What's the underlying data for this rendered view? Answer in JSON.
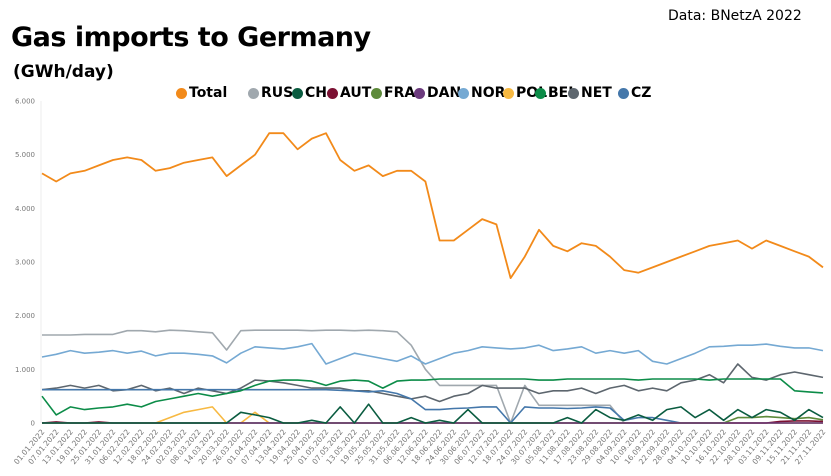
{
  "title": "Gas imports to Germany",
  "subtitle": "(GWh/day)",
  "source": "Data: BNetzA 2022",
  "chart_data": {
    "type": "line",
    "title": "Gas imports to Germany",
    "ylabel": "(GWh/day)",
    "ylim": [
      0,
      6000
    ],
    "yticks": [
      "0",
      "1.000",
      "2.000",
      "3.000",
      "4.000",
      "5.000",
      "6.000"
    ],
    "grid": false,
    "legend_placement": "top",
    "x": [
      "01.01.2022",
      "07.01.2022",
      "13.01.2022",
      "19.01.2022",
      "25.01.2022",
      "31.01.2022",
      "06.02.2022",
      "12.02.2022",
      "18.02.2022",
      "24.02.2022",
      "02.03.2022",
      "08.03.2022",
      "14.03.2022",
      "20.03.2022",
      "26.03.2022",
      "01.04.2022",
      "07.04.2022",
      "13.04.2022",
      "19.04.2022",
      "25.04.2022",
      "01.05.2022",
      "07.05.2022",
      "13.05.2022",
      "19.05.2022",
      "25.05.2022",
      "31.05.2022",
      "06.06.2022",
      "12.06.2022",
      "18.06.2022",
      "24.06.2022",
      "30.06.2022",
      "06.07.2022",
      "12.07.2022",
      "18.07.2022",
      "24.07.2022",
      "30.07.2022",
      "05.08.2022",
      "11.08.2022",
      "17.08.2022",
      "23.08.2022",
      "29.08.2022",
      "04.09.2022",
      "10.09.2022",
      "16.09.2022",
      "22.09.2022",
      "28.09.2022",
      "04.10.2022",
      "10.10.2022",
      "16.10.2022",
      "22.10.2022",
      "28.10.2022",
      "03.11.2022",
      "09.11.2022",
      "15.11.2022",
      "21.11.2022",
      "27.11.2022"
    ],
    "series": [
      {
        "name": "Total",
        "color": "#f28a1a",
        "values": [
          4650,
          4500,
          4650,
          4700,
          4800,
          4900,
          4950,
          4900,
          4700,
          4750,
          4850,
          4900,
          4950,
          4600,
          4800,
          5000,
          5400,
          5400,
          5100,
          5300,
          5400,
          4900,
          4700,
          4800,
          4600,
          4700,
          4700,
          4500,
          3400,
          3400,
          3600,
          3800,
          3700,
          2700,
          3100,
          3600,
          3300,
          3200,
          3350,
          3300,
          3100,
          2850,
          2800,
          2900,
          3000,
          3100,
          3200,
          3300,
          3350,
          3400,
          3250,
          3400,
          3300,
          3200,
          3100,
          2900
        ]
      },
      {
        "name": "RUS",
        "color": "#a0a8ae",
        "values": [
          1640,
          1640,
          1640,
          1650,
          1650,
          1650,
          1720,
          1720,
          1700,
          1730,
          1720,
          1700,
          1680,
          1360,
          1720,
          1730,
          1730,
          1730,
          1730,
          1720,
          1730,
          1730,
          1720,
          1730,
          1720,
          1700,
          1450,
          1000,
          700,
          700,
          700,
          700,
          700,
          0,
          700,
          330,
          330,
          330,
          330,
          330,
          330,
          0,
          0,
          0,
          0,
          0,
          0,
          0,
          0,
          0,
          0,
          0,
          0,
          0,
          0,
          0
        ]
      },
      {
        "name": "CH",
        "color": "#0a5c40",
        "values": [
          0,
          0,
          0,
          0,
          0,
          0,
          0,
          0,
          0,
          0,
          0,
          0,
          0,
          0,
          200,
          150,
          100,
          0,
          0,
          50,
          0,
          300,
          0,
          350,
          0,
          0,
          100,
          0,
          50,
          0,
          250,
          0,
          0,
          0,
          0,
          0,
          0,
          100,
          0,
          250,
          100,
          50,
          150,
          50,
          250,
          300,
          100,
          250,
          50,
          250,
          100,
          250,
          200,
          50,
          250,
          100
        ]
      },
      {
        "name": "AUT",
        "color": "#7b1032",
        "values": [
          0,
          20,
          0,
          0,
          20,
          0,
          0,
          0,
          0,
          0,
          0,
          0,
          0,
          0,
          0,
          0,
          0,
          0,
          0,
          0,
          0,
          0,
          0,
          0,
          0,
          0,
          0,
          0,
          0,
          0,
          0,
          0,
          0,
          0,
          0,
          0,
          0,
          0,
          0,
          0,
          0,
          0,
          0,
          0,
          0,
          0,
          0,
          0,
          0,
          0,
          0,
          0,
          30,
          40,
          40,
          30
        ]
      },
      {
        "name": "FRA",
        "color": "#5d8a3a",
        "values": [
          0,
          0,
          0,
          0,
          0,
          0,
          0,
          0,
          0,
          0,
          0,
          0,
          0,
          0,
          0,
          0,
          0,
          0,
          0,
          0,
          0,
          0,
          0,
          0,
          0,
          0,
          0,
          0,
          0,
          0,
          0,
          0,
          0,
          0,
          0,
          0,
          0,
          0,
          0,
          0,
          0,
          0,
          0,
          0,
          0,
          0,
          0,
          0,
          0,
          100,
          100,
          120,
          100,
          80,
          100,
          60
        ]
      },
      {
        "name": "DAN",
        "color": "#6b3a7d",
        "values": [
          0,
          0,
          0,
          0,
          0,
          0,
          0,
          0,
          0,
          0,
          0,
          0,
          0,
          0,
          0,
          0,
          0,
          0,
          0,
          0,
          0,
          0,
          0,
          0,
          0,
          0,
          0,
          0,
          0,
          0,
          0,
          0,
          0,
          0,
          0,
          0,
          0,
          0,
          0,
          0,
          0,
          0,
          0,
          0,
          0,
          0,
          0,
          0,
          0,
          0,
          0,
          0,
          0,
          0,
          0,
          0
        ]
      },
      {
        "name": "NOR",
        "color": "#75a9d3",
        "values": [
          1230,
          1280,
          1350,
          1300,
          1320,
          1350,
          1300,
          1340,
          1250,
          1300,
          1300,
          1280,
          1250,
          1120,
          1300,
          1420,
          1400,
          1380,
          1420,
          1480,
          1100,
          1200,
          1300,
          1250,
          1200,
          1150,
          1250,
          1100,
          1200,
          1300,
          1350,
          1420,
          1400,
          1380,
          1400,
          1450,
          1350,
          1380,
          1420,
          1300,
          1350,
          1300,
          1350,
          1150,
          1100,
          1200,
          1300,
          1420,
          1430,
          1450,
          1450,
          1470,
          1430,
          1400,
          1400,
          1350
        ]
      },
      {
        "name": "POL",
        "color": "#f7b942",
        "values": [
          0,
          0,
          0,
          0,
          0,
          0,
          0,
          0,
          0,
          100,
          200,
          250,
          300,
          0,
          0,
          200,
          0,
          0,
          0,
          0,
          0,
          0,
          0,
          0,
          0,
          0,
          0,
          0,
          0,
          0,
          0,
          0,
          0,
          0,
          0,
          0,
          0,
          0,
          0,
          0,
          0,
          0,
          0,
          0,
          0,
          0,
          0,
          0,
          0,
          0,
          0,
          0,
          0,
          0,
          0,
          0
        ]
      },
      {
        "name": "BEL",
        "color": "#0c8c48",
        "values": [
          500,
          150,
          300,
          250,
          280,
          300,
          350,
          300,
          400,
          450,
          500,
          550,
          500,
          550,
          600,
          700,
          780,
          800,
          800,
          780,
          700,
          780,
          800,
          780,
          650,
          780,
          800,
          800,
          820,
          820,
          820,
          820,
          820,
          820,
          820,
          800,
          800,
          820,
          820,
          820,
          820,
          820,
          800,
          820,
          820,
          820,
          820,
          800,
          820,
          820,
          820,
          820,
          820,
          600,
          580,
          560
        ]
      },
      {
        "name": "NET",
        "color": "#5d666e",
        "values": [
          620,
          650,
          700,
          650,
          700,
          600,
          620,
          700,
          600,
          650,
          550,
          650,
          600,
          550,
          650,
          800,
          780,
          750,
          700,
          650,
          650,
          650,
          600,
          600,
          550,
          500,
          450,
          500,
          400,
          500,
          550,
          700,
          650,
          650,
          650,
          550,
          600,
          600,
          650,
          550,
          650,
          700,
          600,
          650,
          600,
          750,
          800,
          900,
          750,
          1100,
          850,
          800,
          900,
          950,
          900,
          850
        ]
      },
      {
        "name": "CZ",
        "color": "#4477aa",
        "values": [
          620,
          620,
          620,
          620,
          620,
          620,
          620,
          620,
          620,
          620,
          620,
          620,
          620,
          620,
          620,
          620,
          620,
          620,
          620,
          620,
          620,
          610,
          600,
          580,
          600,
          550,
          450,
          250,
          250,
          270,
          280,
          300,
          300,
          0,
          300,
          280,
          280,
          270,
          280,
          300,
          280,
          50,
          100,
          100,
          50,
          0,
          0,
          0,
          0,
          0,
          0,
          0,
          0,
          0,
          0,
          0
        ]
      }
    ]
  }
}
